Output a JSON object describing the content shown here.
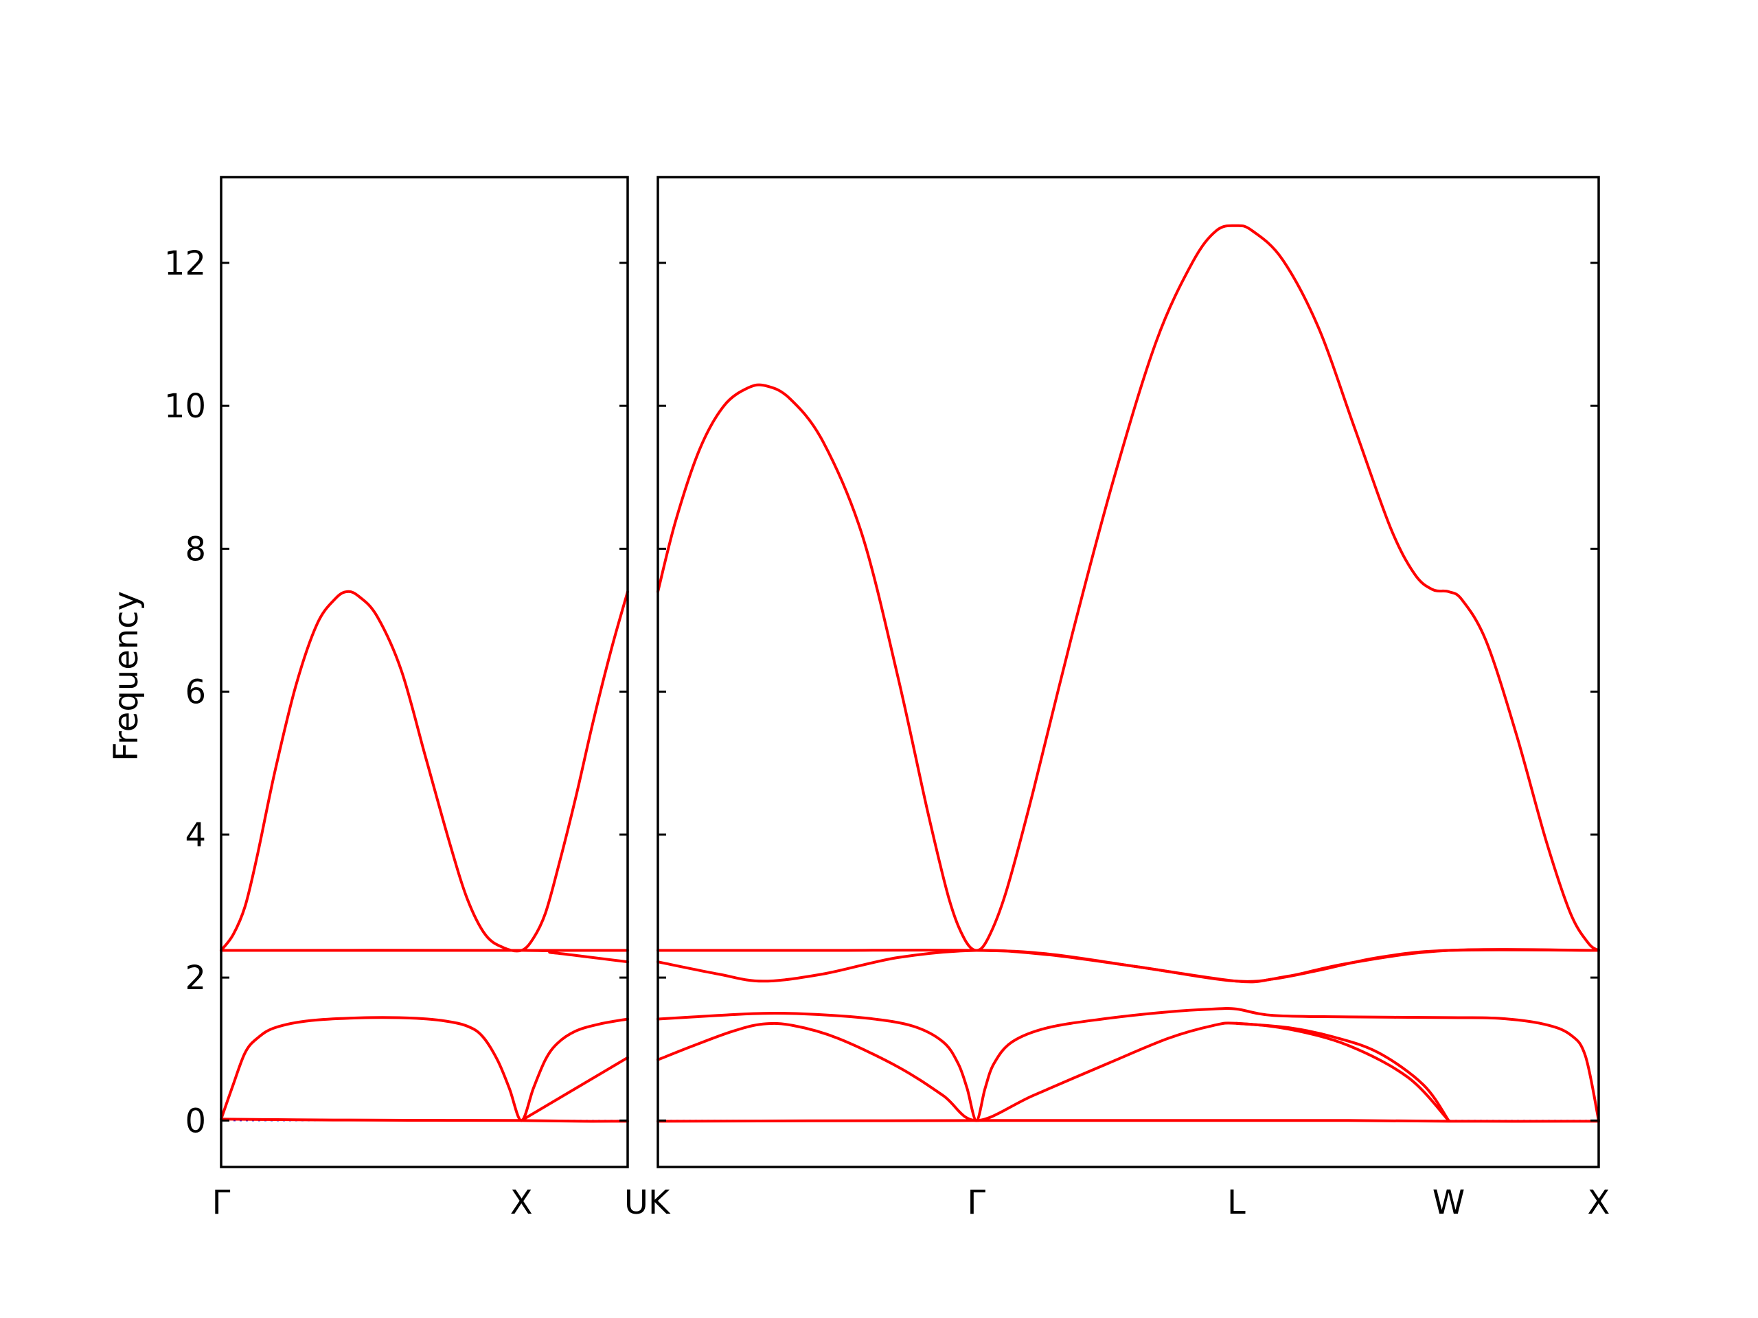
{
  "chart_data": {
    "type": "line",
    "title": "",
    "ylabel": "Frequency",
    "xlabel": "",
    "ylim": [
      -0.65,
      13.2
    ],
    "y_ticks": [
      0,
      2,
      4,
      6,
      8,
      10,
      12
    ],
    "grid": false,
    "colors": {
      "band": "#ff0000",
      "zero_line": "#0000ff",
      "axis": "#000000"
    },
    "panels": [
      {
        "name": "panel-gamma-x-u",
        "x_labels": [
          "Γ",
          "X",
          "U"
        ],
        "x_ticks": [
          0,
          1.0,
          1.354
        ],
        "xlim": [
          0,
          1.354
        ],
        "series": [
          {
            "points": [
              [
                0,
                0.02
              ],
              [
                0.25,
                0.01
              ],
              [
                0.5,
                0.005
              ],
              [
                0.75,
                0.002
              ],
              [
                1.0,
                0.0
              ],
              [
                1.2,
                -0.01
              ],
              [
                1.354,
                -0.01
              ]
            ]
          },
          {
            "points": [
              [
                0,
                0.02
              ],
              [
                0.04,
                0.5
              ],
              [
                0.08,
                0.95
              ],
              [
                0.12,
                1.15
              ],
              [
                0.18,
                1.3
              ],
              [
                0.3,
                1.4
              ],
              [
                0.5,
                1.44
              ],
              [
                0.65,
                1.43
              ],
              [
                0.75,
                1.39
              ],
              [
                0.82,
                1.32
              ],
              [
                0.87,
                1.18
              ],
              [
                0.92,
                0.85
              ],
              [
                0.96,
                0.45
              ],
              [
                1.0,
                0.0
              ],
              [
                1.04,
                0.45
              ],
              [
                1.08,
                0.85
              ],
              [
                1.12,
                1.08
              ],
              [
                1.18,
                1.25
              ],
              [
                1.26,
                1.35
              ],
              [
                1.354,
                1.42
              ]
            ]
          },
          {
            "points": [
              [
                1.0,
                0.0
              ],
              [
                1.354,
                0.88
              ]
            ]
          },
          {
            "points": [
              [
                0,
                2.38
              ],
              [
                1.0,
                2.38
              ],
              [
                1.354,
                2.38
              ]
            ]
          },
          {
            "points": [
              [
                0,
                2.38
              ],
              [
                1.0,
                2.38
              ],
              [
                1.1,
                2.35
              ],
              [
                1.2,
                2.3
              ],
              [
                1.354,
                2.22
              ]
            ]
          },
          {
            "points": [
              [
                0,
                2.38
              ],
              [
                0.04,
                2.6
              ],
              [
                0.08,
                3.0
              ],
              [
                0.12,
                3.7
              ],
              [
                0.18,
                4.9
              ],
              [
                0.25,
                6.1
              ],
              [
                0.32,
                6.95
              ],
              [
                0.38,
                7.3
              ],
              [
                0.42,
                7.4
              ],
              [
                0.46,
                7.33
              ],
              [
                0.52,
                7.05
              ],
              [
                0.6,
                6.3
              ],
              [
                0.68,
                5.1
              ],
              [
                0.76,
                3.9
              ],
              [
                0.82,
                3.1
              ],
              [
                0.88,
                2.6
              ],
              [
                0.94,
                2.42
              ],
              [
                1.0,
                2.38
              ],
              [
                1.04,
                2.55
              ],
              [
                1.08,
                2.9
              ],
              [
                1.12,
                3.5
              ],
              [
                1.18,
                4.5
              ],
              [
                1.24,
                5.6
              ],
              [
                1.3,
                6.6
              ],
              [
                1.354,
                7.4
              ]
            ]
          }
        ]
      },
      {
        "name": "panel-k-gamma-l-w-x",
        "x_labels": [
          "K",
          "Γ",
          "L",
          "W",
          "X"
        ],
        "x_ticks": [
          0,
          1.061,
          1.927,
          2.634,
          3.134
        ],
        "xlim": [
          0,
          3.134
        ],
        "series": [
          {
            "points": [
              [
                0,
                -0.01
              ],
              [
                0.5,
                -0.005
              ],
              [
                1.061,
                0.0
              ],
              [
                1.5,
                0.0
              ],
              [
                1.927,
                0.0
              ],
              [
                2.3,
                0.0
              ],
              [
                2.634,
                -0.01
              ],
              [
                3.134,
                -0.01
              ]
            ]
          },
          {
            "points": [
              [
                0,
                0.85
              ],
              [
                0.12,
                1.05
              ],
              [
                0.25,
                1.25
              ],
              [
                0.35,
                1.35
              ],
              [
                0.45,
                1.33
              ],
              [
                0.6,
                1.15
              ],
              [
                0.8,
                0.75
              ],
              [
                0.95,
                0.35
              ],
              [
                1.061,
                0.0
              ],
              [
                1.25,
                0.35
              ],
              [
                1.5,
                0.8
              ],
              [
                1.7,
                1.15
              ],
              [
                1.85,
                1.33
              ],
              [
                1.927,
                1.36
              ],
              [
                2.1,
                1.28
              ],
              [
                2.3,
                1.05
              ],
              [
                2.5,
                0.6
              ],
              [
                2.634,
                0.0
              ]
            ]
          },
          {
            "points": [
              [
                1.927,
                1.36
              ],
              [
                2.1,
                1.3
              ],
              [
                2.25,
                1.17
              ],
              [
                2.4,
                0.95
              ],
              [
                2.55,
                0.5
              ],
              [
                2.634,
                0.0
              ]
            ]
          },
          {
            "points": [
              [
                0,
                1.42
              ],
              [
                0.2,
                1.47
              ],
              [
                0.35,
                1.5
              ],
              [
                0.5,
                1.49
              ],
              [
                0.7,
                1.43
              ],
              [
                0.85,
                1.32
              ],
              [
                0.95,
                1.1
              ],
              [
                1.0,
                0.8
              ],
              [
                1.03,
                0.45
              ],
              [
                1.061,
                0.0
              ],
              [
                1.09,
                0.45
              ],
              [
                1.12,
                0.8
              ],
              [
                1.18,
                1.1
              ],
              [
                1.3,
                1.3
              ],
              [
                1.5,
                1.43
              ],
              [
                1.7,
                1.52
              ],
              [
                1.85,
                1.56
              ],
              [
                1.927,
                1.56
              ],
              [
                2.05,
                1.47
              ],
              [
                2.3,
                1.45
              ],
              [
                2.634,
                1.44
              ],
              [
                2.8,
                1.43
              ],
              [
                2.95,
                1.35
              ],
              [
                3.04,
                1.2
              ],
              [
                3.09,
                0.9
              ],
              [
                3.134,
                0.0
              ]
            ]
          },
          {
            "points": [
              [
                0,
                2.22
              ],
              [
                0.2,
                2.05
              ],
              [
                0.35,
                1.95
              ],
              [
                0.55,
                2.05
              ],
              [
                0.8,
                2.28
              ],
              [
                1.061,
                2.38
              ],
              [
                1.3,
                2.32
              ],
              [
                1.6,
                2.15
              ],
              [
                1.927,
                1.95
              ],
              [
                2.1,
                2.02
              ],
              [
                2.3,
                2.2
              ],
              [
                2.634,
                2.38
              ],
              [
                3.134,
                2.38
              ]
            ]
          },
          {
            "points": [
              [
                0,
                2.38
              ],
              [
                0.5,
                2.38
              ],
              [
                1.061,
                2.38
              ],
              [
                1.3,
                2.33
              ],
              [
                1.6,
                2.15
              ],
              [
                1.927,
                1.95
              ],
              [
                2.05,
                1.98
              ],
              [
                2.2,
                2.1
              ],
              [
                2.4,
                2.28
              ],
              [
                2.634,
                2.38
              ],
              [
                3.134,
                2.38
              ]
            ]
          },
          {
            "points": [
              [
                0,
                7.4
              ],
              [
                0.06,
                8.4
              ],
              [
                0.14,
                9.4
              ],
              [
                0.22,
                10.0
              ],
              [
                0.3,
                10.25
              ],
              [
                0.36,
                10.28
              ],
              [
                0.44,
                10.1
              ],
              [
                0.55,
                9.5
              ],
              [
                0.68,
                8.2
              ],
              [
                0.8,
                6.2
              ],
              [
                0.9,
                4.3
              ],
              [
                0.97,
                3.1
              ],
              [
                1.02,
                2.55
              ],
              [
                1.061,
                2.38
              ],
              [
                1.1,
                2.55
              ],
              [
                1.16,
                3.2
              ],
              [
                1.25,
                4.6
              ],
              [
                1.38,
                6.8
              ],
              [
                1.52,
                9.0
              ],
              [
                1.66,
                10.9
              ],
              [
                1.78,
                12.0
              ],
              [
                1.86,
                12.45
              ],
              [
                1.927,
                12.52
              ],
              [
                1.98,
                12.45
              ],
              [
                2.08,
                12.05
              ],
              [
                2.2,
                11.1
              ],
              [
                2.32,
                9.7
              ],
              [
                2.44,
                8.3
              ],
              [
                2.52,
                7.65
              ],
              [
                2.58,
                7.43
              ],
              [
                2.634,
                7.4
              ],
              [
                2.68,
                7.28
              ],
              [
                2.76,
                6.7
              ],
              [
                2.86,
                5.4
              ],
              [
                2.96,
                3.9
              ],
              [
                3.04,
                2.9
              ],
              [
                3.1,
                2.48
              ],
              [
                3.134,
                2.38
              ]
            ]
          }
        ]
      }
    ]
  }
}
